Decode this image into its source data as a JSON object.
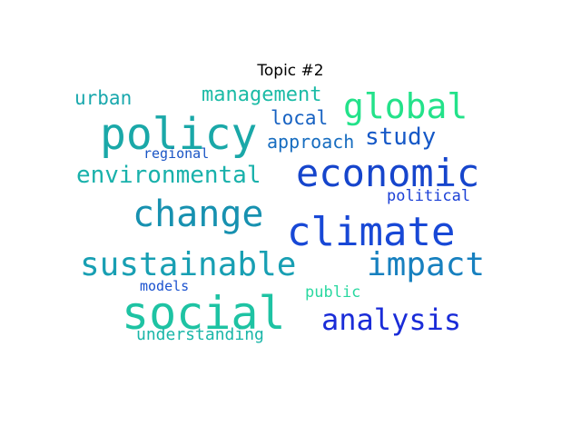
{
  "chart_data": {
    "type": "wordcloud",
    "title": "Topic #2",
    "words": [
      {
        "text": "social",
        "weight": 1.0,
        "color": "#1ec3a3"
      },
      {
        "text": "policy",
        "weight": 0.95,
        "color": "#1aa8a8"
      },
      {
        "text": "climate",
        "weight": 0.86,
        "color": "#1848d6"
      },
      {
        "text": "economic",
        "weight": 0.83,
        "color": "#1645cc"
      },
      {
        "text": "change",
        "weight": 0.79,
        "color": "#1791b0"
      },
      {
        "text": "global",
        "weight": 0.75,
        "color": "#23e28a"
      },
      {
        "text": "sustainable",
        "weight": 0.71,
        "color": "#189fb3"
      },
      {
        "text": "impact",
        "weight": 0.7,
        "color": "#1780bf"
      },
      {
        "text": "analysis",
        "weight": 0.62,
        "color": "#1a2cd8"
      },
      {
        "text": "environmental",
        "weight": 0.5,
        "color": "#19b1ab"
      },
      {
        "text": "study",
        "weight": 0.49,
        "color": "#1558c7"
      },
      {
        "text": "management",
        "weight": 0.43,
        "color": "#1bbba6"
      },
      {
        "text": "approach",
        "weight": 0.4,
        "color": "#176dc0"
      },
      {
        "text": "urban",
        "weight": 0.4,
        "color": "#19a8ad"
      },
      {
        "text": "local",
        "weight": 0.39,
        "color": "#1762c2"
      },
      {
        "text": "understanding",
        "weight": 0.35,
        "color": "#1ab6a8"
      },
      {
        "text": "public",
        "weight": 0.33,
        "color": "#2ad8a0"
      },
      {
        "text": "political",
        "weight": 0.32,
        "color": "#1b40d6"
      },
      {
        "text": "regional",
        "weight": 0.28,
        "color": "#1a55c5"
      },
      {
        "text": "models",
        "weight": 0.28,
        "color": "#1b52cf"
      }
    ]
  }
}
